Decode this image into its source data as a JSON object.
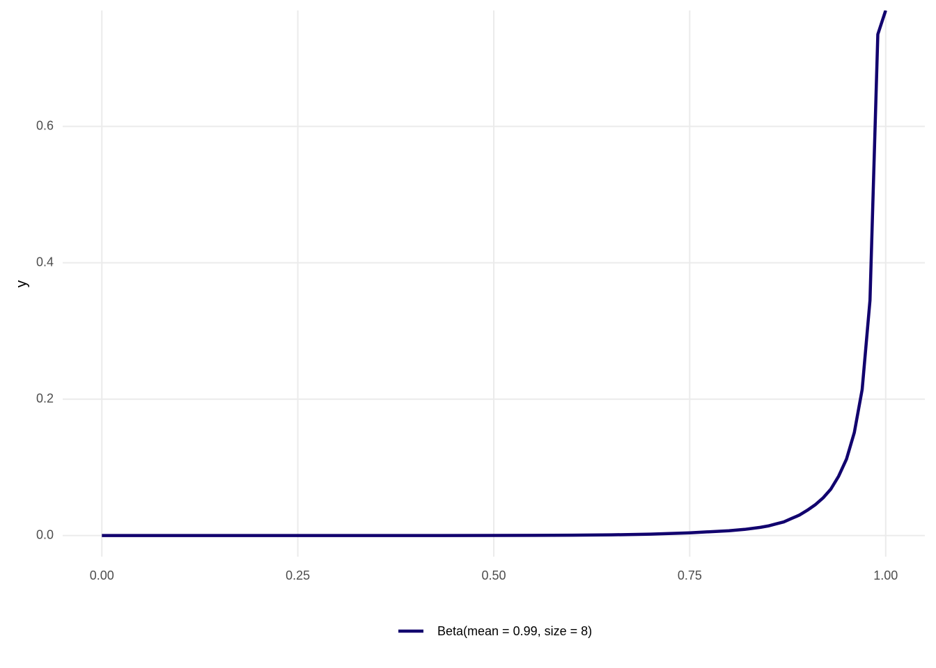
{
  "chart_data": {
    "type": "line",
    "y_label": "y",
    "x": [
      0,
      0.1,
      0.2,
      0.3,
      0.4,
      0.5,
      0.55,
      0.6,
      0.65,
      0.7,
      0.75,
      0.8,
      0.82,
      0.84,
      0.85,
      0.86,
      0.87,
      0.88,
      0.89,
      0.9,
      0.91,
      0.92,
      0.93,
      0.94,
      0.95,
      0.96,
      0.97,
      0.98,
      0.99,
      1.0
    ],
    "series": [
      {
        "name": "Beta(mean = 0.99, size = 8)",
        "color": "#11006e",
        "values": [
          0,
          0,
          0,
          0,
          0,
          0.0001,
          0.0002,
          0.0005,
          0.001,
          0.002,
          0.004,
          0.007,
          0.009,
          0.012,
          0.014,
          0.017,
          0.02,
          0.025,
          0.03,
          0.037,
          0.045,
          0.055,
          0.068,
          0.087,
          0.112,
          0.151,
          0.214,
          0.345,
          0.735,
          0.77
        ]
      }
    ],
    "xlim": [
      -0.05,
      1.05
    ],
    "ylim": [
      -0.031,
      0.77
    ],
    "xticks": [
      {
        "value": 0,
        "label": "0.00"
      },
      {
        "value": 0.25,
        "label": "0.25"
      },
      {
        "value": 0.5,
        "label": "0.50"
      },
      {
        "value": 0.75,
        "label": "0.75"
      },
      {
        "value": 1,
        "label": "1.00"
      }
    ],
    "yticks": [
      {
        "value": 0,
        "label": "0.0"
      },
      0.2,
      0.4,
      0.6
    ],
    "grid": true,
    "legend": "bottom"
  }
}
